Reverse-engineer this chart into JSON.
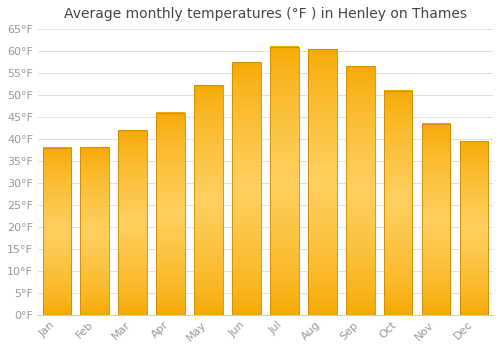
{
  "title": "Average monthly temperatures (°F ) in Henley on Thames",
  "months": [
    "Jan",
    "Feb",
    "Mar",
    "Apr",
    "May",
    "Jun",
    "Jul",
    "Aug",
    "Sep",
    "Oct",
    "Nov",
    "Dec"
  ],
  "values": [
    38,
    38.2,
    42,
    46,
    52.2,
    57.5,
    61,
    60.5,
    56.5,
    51,
    43.5,
    39.5
  ],
  "bar_color_main": "#FFA500",
  "bar_color_light": "#FFD060",
  "bar_color_edge": "#CC8800",
  "ylim": [
    0,
    65
  ],
  "yticks": [
    0,
    5,
    10,
    15,
    20,
    25,
    30,
    35,
    40,
    45,
    50,
    55,
    60,
    65
  ],
  "ytick_labels": [
    "0°F",
    "5°F",
    "10°F",
    "15°F",
    "20°F",
    "25°F",
    "30°F",
    "35°F",
    "40°F",
    "45°F",
    "50°F",
    "55°F",
    "60°F",
    "65°F"
  ],
  "title_fontsize": 10,
  "tick_fontsize": 8,
  "background_color": "#FFFFFF",
  "grid_color": "#E0E0E0",
  "tick_color": "#999999"
}
